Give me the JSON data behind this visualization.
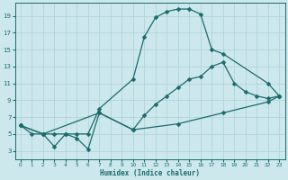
{
  "xlabel": "Humidex (Indice chaleur)",
  "bg_color": "#cce8ed",
  "line_color": "#1a6b6b",
  "grid_color": "#afd4da",
  "xlim": [
    -0.5,
    23.5
  ],
  "ylim": [
    2,
    20.5
  ],
  "xticks": [
    0,
    1,
    2,
    3,
    4,
    5,
    6,
    7,
    8,
    9,
    10,
    11,
    12,
    13,
    14,
    15,
    16,
    17,
    18,
    19,
    20,
    21,
    22,
    23
  ],
  "yticks": [
    3,
    5,
    7,
    9,
    11,
    13,
    15,
    17,
    19
  ],
  "line1_x": [
    0,
    1,
    2,
    3,
    4,
    5,
    6,
    7,
    10,
    11,
    12,
    13,
    14,
    15,
    16,
    17,
    18,
    22,
    23
  ],
  "line1_y": [
    6,
    5,
    5,
    5,
    5,
    5,
    5,
    8,
    11.5,
    16.5,
    18.8,
    19.5,
    19.8,
    19.8,
    19.2,
    15.0,
    14.5,
    11.0,
    9.5
  ],
  "line2_x": [
    0,
    2,
    3,
    4,
    5,
    6,
    7,
    10,
    11,
    12,
    13,
    14,
    15,
    16,
    17,
    18,
    19,
    20,
    21,
    22,
    23
  ],
  "line2_y": [
    6,
    5.0,
    3.5,
    5.0,
    4.5,
    3.2,
    7.5,
    5.5,
    7.2,
    8.5,
    9.5,
    10.5,
    11.5,
    11.8,
    13.0,
    13.5,
    11.0,
    10.0,
    9.5,
    9.2,
    9.5
  ],
  "line3_x": [
    0,
    2,
    7,
    10,
    14,
    18,
    22,
    23
  ],
  "line3_y": [
    6,
    5.0,
    7.5,
    5.5,
    6.2,
    7.5,
    8.8,
    9.5
  ],
  "marker": "D",
  "markersize": 2.5,
  "linewidth": 0.9
}
